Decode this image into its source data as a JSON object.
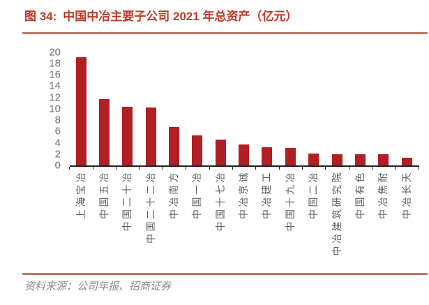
{
  "header": {
    "figure_label": "图 34:",
    "title": "中国中冶主要子公司 2021 年总资产（亿元）",
    "accent_color": "#bf3a28",
    "rule_color": "#b97b63"
  },
  "chart_data": {
    "type": "bar",
    "title": "中国中冶主要子公司 2021 年总资产（亿元）",
    "categories": [
      "上海宝冶",
      "中国五冶",
      "中国二十冶",
      "中国二十二冶",
      "中冶南方",
      "中国一冶",
      "中国十七冶",
      "中冶京诚",
      "中冶建工",
      "中国十九冶",
      "中国二冶",
      "中冶建筑研究院",
      "中国有色",
      "中冶焦耐",
      "中冶长天"
    ],
    "values": [
      19.1,
      11.7,
      10.4,
      10.2,
      6.8,
      5.3,
      4.6,
      3.7,
      3.2,
      3.1,
      2.1,
      2.0,
      2.0,
      2.0,
      1.4
    ],
    "xlabel": "",
    "ylabel": "",
    "ylim": [
      0,
      20
    ],
    "ytick_step": 2,
    "grid": false,
    "legend_position": "none",
    "bar_color": "#b01f24",
    "axis_color": "#1f1f1f",
    "ytick_label_color": "#6f6f6f",
    "xtick_label_color": "#606060"
  },
  "footer": {
    "source_text": "资料来源：公司年报、招商证券",
    "text_color": "#8b8b8b"
  }
}
